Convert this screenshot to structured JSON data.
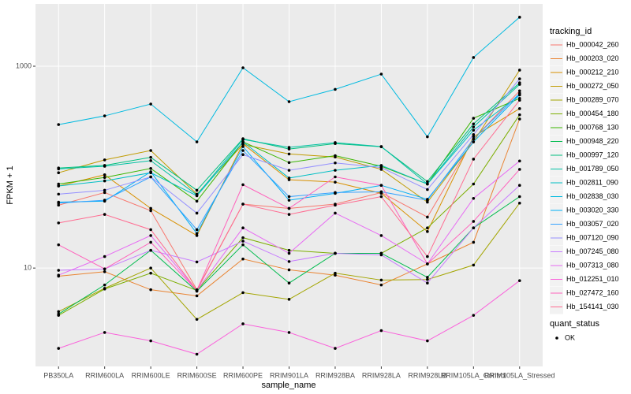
{
  "chart_data": {
    "type": "line",
    "log_scale": true,
    "grid": true,
    "x_label": "sample_name",
    "y_label": "FPKM + 1",
    "categories": [
      "PB350LA",
      "RRIM600LA",
      "RRIM600LE",
      "RRIM600SE",
      "RRIM600PE",
      "RRIM901LA",
      "RRIM928BA",
      "RRIM928LA",
      "RRIM928LB",
      "RRIM105LA_Control",
      "RRIM105LA_Stressed"
    ],
    "ylim": [
      1.06,
      4140
    ],
    "yticks": [
      10,
      1000
    ],
    "legend_title": "tracking_id",
    "point_legend_title": "quant_status",
    "point_legend_label": "OK",
    "series": [
      {
        "name": "Hb_000042_260",
        "color": "#F8766D",
        "values": [
          42,
          56,
          37,
          6.1,
          43,
          39,
          43,
          56,
          32,
          190,
          570
        ]
      },
      {
        "name": "Hb_000203_020",
        "color": "#EA8331",
        "values": [
          8.3,
          9.2,
          6.1,
          5.3,
          12.3,
          9.6,
          8.5,
          6.8,
          11,
          18,
          300
        ]
      },
      {
        "name": "Hb_000212_210",
        "color": "#D89000",
        "values": [
          65,
          84,
          39,
          21,
          170,
          75,
          71,
          55,
          23,
          200,
          380
        ]
      },
      {
        "name": "Hb_000272_050",
        "color": "#C09B00",
        "values": [
          88,
          118,
          146,
          54,
          168,
          135,
          126,
          95,
          45,
          178,
          915
        ]
      },
      {
        "name": "Hb_000289_070",
        "color": "#A3A500",
        "values": [
          3.7,
          6.3,
          10,
          3.1,
          5.7,
          4.9,
          8.9,
          7.6,
          7.7,
          10.7,
          44
        ]
      },
      {
        "name": "Hb_000454_180",
        "color": "#7CAE00",
        "values": [
          3.4,
          6.2,
          8.9,
          6.0,
          20,
          15,
          14,
          14,
          25,
          68,
          330
        ]
      },
      {
        "name": "Hb_000768_130",
        "color": "#39B600",
        "values": [
          68,
          79,
          97,
          46,
          178,
          111,
          130,
          102,
          68,
          305,
          480
        ]
      },
      {
        "name": "Hb_000948_220",
        "color": "#00BB4E",
        "values": [
          3.5,
          6.8,
          15,
          5.9,
          17,
          7.1,
          14,
          14,
          8.1,
          25,
          51
        ]
      },
      {
        "name": "Hb_000997_120",
        "color": "#00BF7D",
        "values": [
          98,
          104,
          125,
          59,
          191,
          151,
          171,
          159,
          72,
          268,
          685
        ]
      },
      {
        "name": "Hb_001789_050",
        "color": "#00C1A3",
        "values": [
          96,
          102,
          116,
          53,
          188,
          157,
          175,
          160,
          68,
          250,
          660
        ]
      },
      {
        "name": "Hb_002811_090",
        "color": "#00BFC4",
        "values": [
          65,
          73,
          88,
          52,
          178,
          78,
          93,
          104,
          68,
          232,
          520
        ]
      },
      {
        "name": "Hb_002838_030",
        "color": "#00BAE0",
        "values": [
          264,
          322,
          422,
          178,
          965,
          445,
          590,
          835,
          200,
          1220,
          3060
        ]
      },
      {
        "name": "Hb_003020_330",
        "color": "#00B0F6",
        "values": [
          45,
          46,
          90,
          22,
          160,
          47,
          55,
          66,
          48,
          178,
          520
        ]
      },
      {
        "name": "Hb_003057_020",
        "color": "#35A2FF",
        "values": [
          44,
          47,
          80,
          24,
          146,
          51,
          56,
          57,
          47,
          190,
          540
        ]
      },
      {
        "name": "Hb_007120_090",
        "color": "#9590FF",
        "values": [
          54,
          59,
          80,
          35,
          133,
          93,
          110,
          99,
          60,
          210,
          750
        ]
      },
      {
        "name": "Hb_007245_080",
        "color": "#C77CFF",
        "values": [
          9.5,
          9.8,
          15,
          11.5,
          18.5,
          11.6,
          14,
          13.5,
          7.1,
          25,
          66
        ]
      },
      {
        "name": "Hb_007313_080",
        "color": "#E76BF3",
        "values": [
          8.5,
          13,
          21,
          6,
          25,
          14,
          35,
          21,
          11,
          49,
          115
        ]
      },
      {
        "name": "Hb_012251_010",
        "color": "#FA62DB",
        "values": [
          1.6,
          2.3,
          1.9,
          1.4,
          2.8,
          2.3,
          1.6,
          2.4,
          1.9,
          3.4,
          7.5
        ]
      },
      {
        "name": "Hb_027472_160",
        "color": "#FF62BC",
        "values": [
          17,
          9.8,
          18,
          6,
          67,
          39,
          80,
          66,
          11,
          29,
          95
        ]
      },
      {
        "name": "Hb_154141_030",
        "color": "#FF6C91",
        "values": [
          28,
          34,
          24,
          6,
          43,
          34,
          42,
          51,
          13,
          120,
          460
        ]
      }
    ]
  }
}
